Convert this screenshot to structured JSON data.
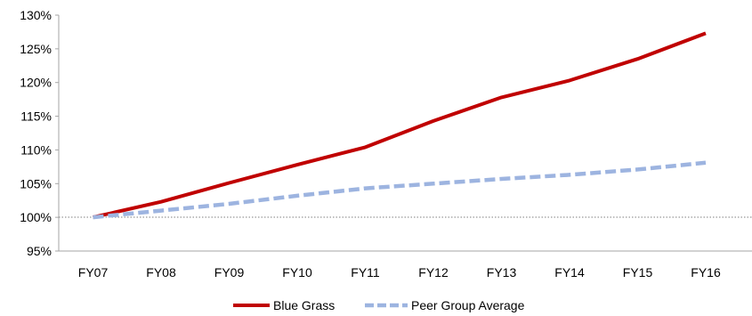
{
  "chart_data": {
    "type": "line",
    "categories": [
      "FY07",
      "FY08",
      "FY09",
      "FY10",
      "FY11",
      "FY12",
      "FY13",
      "FY14",
      "FY15",
      "FY16"
    ],
    "series": [
      {
        "name": "Blue Grass",
        "values": [
          100.0,
          102.3,
          105.1,
          107.8,
          110.4,
          114.3,
          117.8,
          120.3,
          123.5,
          127.3
        ],
        "color": "#c00000",
        "style": "solid"
      },
      {
        "name": "Peer Group Average",
        "values": [
          100.0,
          101.0,
          102.0,
          103.2,
          104.3,
          105.0,
          105.7,
          106.3,
          107.1,
          108.1
        ],
        "color": "#9db4e0",
        "style": "dashed"
      }
    ],
    "yticks": [
      "95%",
      "100%",
      "105%",
      "110%",
      "115%",
      "120%",
      "125%",
      "130%"
    ],
    "ylim": [
      95,
      130
    ],
    "reference_line": 100,
    "grid": false,
    "legend_position": "bottom"
  }
}
